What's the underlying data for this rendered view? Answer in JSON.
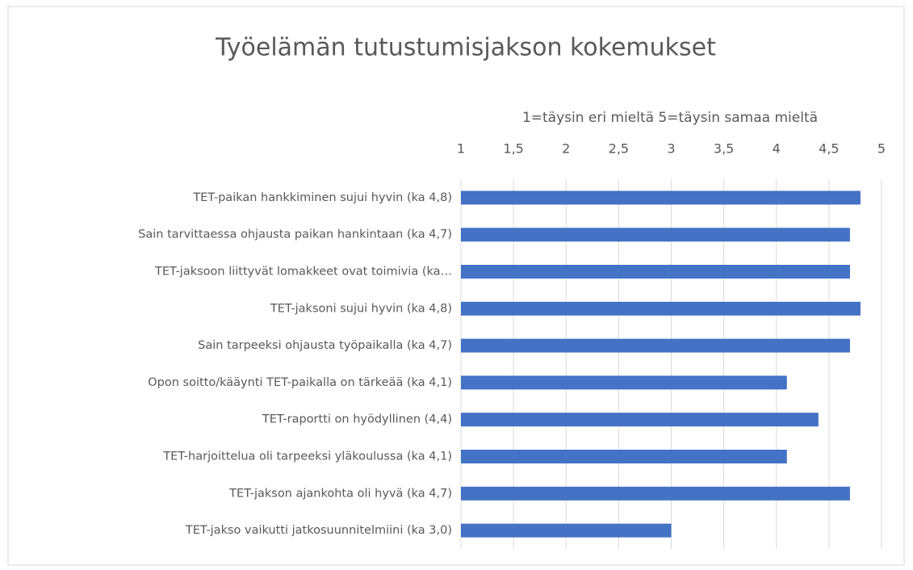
{
  "chart_data": {
    "type": "barh",
    "title": "Työelämän tutustumisjakson kokemukset",
    "x_label": "1=täysin eri mieltä 5=täysin samaa mieltä",
    "categories": [
      "TET-paikan hankkiminen sujui hyvin (ka 4,8)",
      "Sain tarvittaessa ohjausta paikan hankintaan (ka 4,7)",
      "TET-jaksoon liittyvät lomakkeet ovat toimivia (ka…",
      "TET-jaksoni sujui hyvin (ka 4,8)",
      "Sain tarpeeksi ohjausta työpaikalla (ka 4,7)",
      "Opon soitto/kääynti TET-paikalla on tärkeää (ka 4,1)",
      "TET-raportti on hyödyllinen (4,4)",
      "TET-harjoittelua oli tarpeeksi yläkoulussa (ka 4,1)",
      "TET-jakson ajankohta oli hyvä (ka 4,7)",
      "TET-jakso vaikutti jatkosuunnitelmiini (ka 3,0)"
    ],
    "values": [
      4.8,
      4.7,
      4.7,
      4.8,
      4.7,
      4.1,
      4.4,
      4.1,
      4.7,
      3.0
    ],
    "color": "#4472c4",
    "xlim": [
      1,
      5
    ],
    "xticks": [
      1,
      {
        "value": 1.5,
        "label": "1,5"
      },
      2,
      {
        "value": 2.5,
        "label": "2,5"
      },
      3,
      {
        "value": 3.5,
        "label": "3,5"
      },
      4,
      {
        "value": 4.5,
        "label": "4,5"
      },
      5
    ],
    "grid": true
  }
}
